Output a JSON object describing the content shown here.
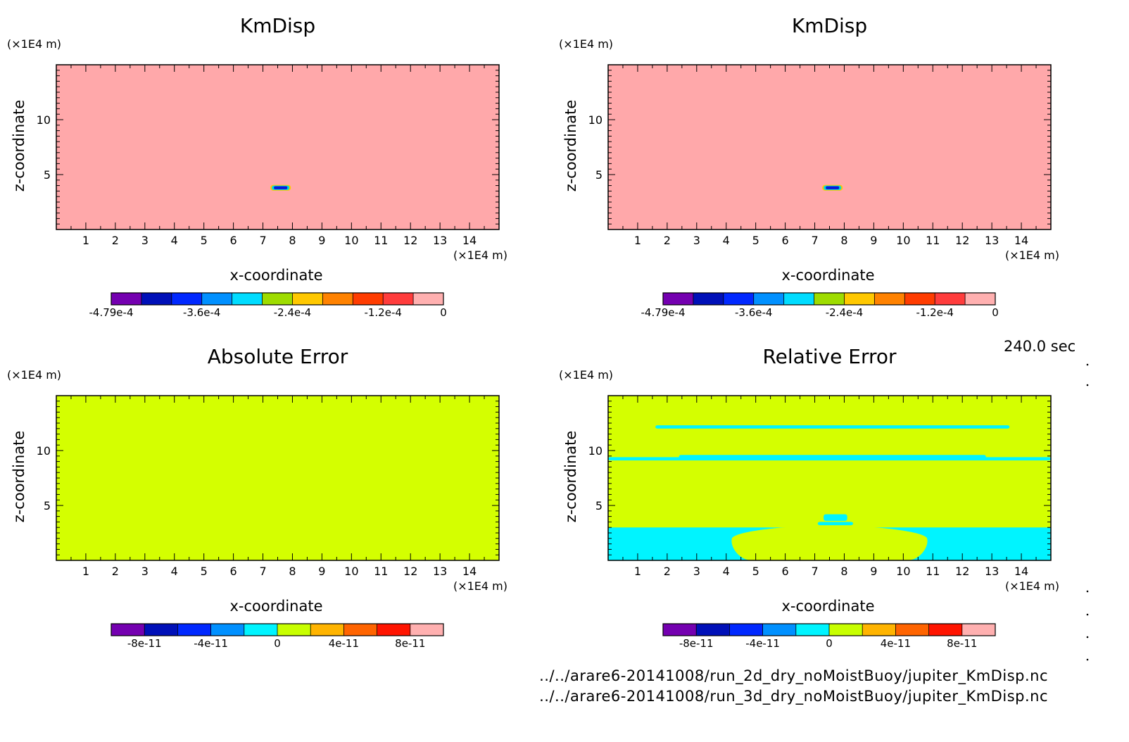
{
  "time_label": "240.0 sec",
  "files": [
    "../../arare6-20141008/run_2d_dry_noMoistBuoy/jupiter_KmDisp.nc",
    "../../arare6-20141008/run_3d_dry_noMoistBuoy/jupiter_KmDisp.nc"
  ],
  "chart_data": [
    {
      "type": "heatmap",
      "title": "KmDisp",
      "xlabel": "x-coordinate",
      "ylabel": "z-coordinate",
      "x_unit": "(×1E4 m)",
      "y_unit": "(×1E4 m)",
      "xlim": [
        0,
        15
      ],
      "ylim": [
        0,
        15
      ],
      "xticks": [
        1,
        2,
        3,
        4,
        5,
        6,
        7,
        8,
        9,
        10,
        11,
        12,
        13,
        14
      ],
      "yticks": [
        5,
        10
      ],
      "background_color": "#ffa8aa",
      "features": [
        {
          "kind": "blob",
          "x": [
            7.3,
            7.9
          ],
          "z": [
            3.6,
            4.0
          ],
          "level_color": "#0a18d8",
          "edge_color": "#00d8e0"
        }
      ],
      "colorbar": {
        "colors": [
          "#7400b0",
          "#0010b8",
          "#0028ff",
          "#0090ff",
          "#00dcff",
          "#9edc00",
          "#ffc800",
          "#ff8200",
          "#ff3c00",
          "#ff3c3c",
          "#ffb0b0"
        ],
        "labels": [
          "-4.79e-4",
          "-3.6e-4",
          "-2.4e-4",
          "-1.2e-4",
          "0"
        ],
        "label_positions": [
          0,
          3,
          6,
          9,
          12
        ]
      }
    },
    {
      "type": "heatmap",
      "title": "KmDisp",
      "xlabel": "x-coordinate",
      "ylabel": "z-coordinate",
      "x_unit": "(×1E4 m)",
      "y_unit": "(×1E4 m)",
      "xlim": [
        0,
        15
      ],
      "ylim": [
        0,
        15
      ],
      "xticks": [
        1,
        2,
        3,
        4,
        5,
        6,
        7,
        8,
        9,
        10,
        11,
        12,
        13,
        14
      ],
      "yticks": [
        5,
        10
      ],
      "background_color": "#ffa8aa",
      "features": [
        {
          "kind": "blob",
          "x": [
            7.3,
            7.9
          ],
          "z": [
            3.6,
            4.0
          ],
          "level_color": "#0a18d8",
          "edge_color": "#00d8e0"
        }
      ],
      "colorbar": {
        "colors": [
          "#7400b0",
          "#0010b8",
          "#0028ff",
          "#0090ff",
          "#00dcff",
          "#9edc00",
          "#ffc800",
          "#ff8200",
          "#ff3c00",
          "#ff3c3c",
          "#ffb0b0"
        ],
        "labels": [
          "-4.79e-4",
          "-3.6e-4",
          "-2.4e-4",
          "-1.2e-4",
          "0"
        ],
        "label_positions": [
          0,
          3,
          6,
          9,
          12
        ]
      }
    },
    {
      "type": "heatmap",
      "title": "Absolute Error",
      "xlabel": "x-coordinate",
      "ylabel": "z-coordinate",
      "x_unit": "(×1E4 m)",
      "y_unit": "(×1E4 m)",
      "xlim": [
        0,
        15
      ],
      "ylim": [
        0,
        15
      ],
      "xticks": [
        1,
        2,
        3,
        4,
        5,
        6,
        7,
        8,
        9,
        10,
        11,
        12,
        13,
        14
      ],
      "yticks": [
        5,
        10
      ],
      "background_color": "#d4ff00",
      "features": [],
      "colorbar": {
        "colors": [
          "#7400b0",
          "#0010b8",
          "#0028ff",
          "#0090ff",
          "#00f4ff",
          "#c8ff00",
          "#ffb400",
          "#ff6400",
          "#ff1400",
          "#ffb0b0"
        ],
        "labels": [
          "-8e-11",
          "-4e-11",
          "0",
          "4e-11",
          "8e-11"
        ],
        "label_positions": [
          1,
          3,
          5,
          7,
          9
        ]
      }
    },
    {
      "type": "heatmap",
      "title": "Relative Error",
      "xlabel": "x-coordinate",
      "ylabel": "z-coordinate",
      "x_unit": "(×1E4 m)",
      "y_unit": "(×1E4 m)",
      "xlim": [
        0,
        15
      ],
      "ylim": [
        0,
        15
      ],
      "xticks": [
        1,
        2,
        3,
        4,
        5,
        6,
        7,
        8,
        9,
        10,
        11,
        12,
        13,
        14
      ],
      "yticks": [
        5,
        10
      ],
      "background_color": "#d4ff00",
      "features": [
        {
          "kind": "band",
          "x": [
            1.6,
            13.6
          ],
          "z": [
            12.0,
            12.3
          ],
          "color": "#00f4ff"
        },
        {
          "kind": "band",
          "x": [
            0.0,
            15.0
          ],
          "z": [
            9.1,
            9.4
          ],
          "color": "#00f4ff"
        },
        {
          "kind": "band",
          "x": [
            2.4,
            12.8
          ],
          "z": [
            9.3,
            9.6
          ],
          "color": "#00f4ff"
        },
        {
          "kind": "band",
          "x": [
            0.0,
            15.0
          ],
          "z": [
            0.0,
            3.0
          ],
          "color": "#00f4ff"
        },
        {
          "kind": "dome",
          "x": [
            4.2,
            10.8
          ],
          "z": [
            0.0,
            3.2
          ],
          "color": "#d4ff00"
        },
        {
          "kind": "band",
          "x": [
            7.1,
            8.3
          ],
          "z": [
            3.2,
            3.5
          ],
          "color": "#00f4ff"
        },
        {
          "kind": "band",
          "x": [
            7.3,
            8.1
          ],
          "z": [
            3.6,
            4.2
          ],
          "color": "#00f4ff"
        }
      ],
      "colorbar": {
        "colors": [
          "#7400b0",
          "#0010b8",
          "#0028ff",
          "#0090ff",
          "#00f4ff",
          "#c8ff00",
          "#ffb400",
          "#ff6400",
          "#ff1400",
          "#ffb0b0"
        ],
        "labels": [
          "-8e-11",
          "-4e-11",
          "0",
          "4e-11",
          "8e-11"
        ],
        "label_positions": [
          1,
          3,
          5,
          7,
          9
        ]
      }
    }
  ]
}
